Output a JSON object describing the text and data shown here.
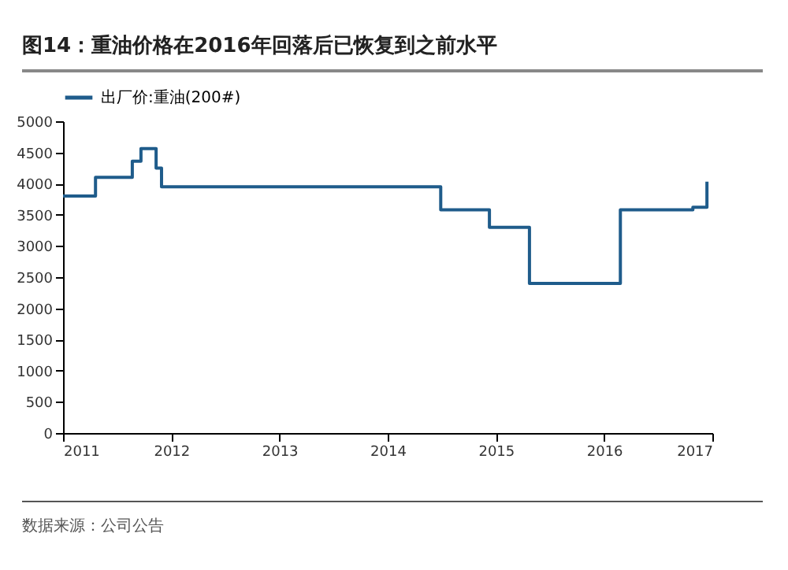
{
  "chart_data": {
    "type": "step",
    "title": "图14：重油价格在2016年回落后已恢复到之前水平",
    "x": [
      2011.0,
      2011.3,
      2011.64,
      2011.72,
      2011.86,
      2011.91,
      2014.49,
      2014.94,
      2015.31,
      2016.15,
      2016.82,
      2016.95
    ],
    "series": [
      {
        "name": "出厂价:重油(200#)",
        "color": "#1f5c8b",
        "values": [
          3800,
          4100,
          4360,
          4560,
          4250,
          3950,
          3580,
          3300,
          2400,
          3580,
          3620,
          4030
        ]
      }
    ],
    "xlim": [
      2011,
      2017
    ],
    "xticks": [
      2011,
      2012,
      2013,
      2014,
      2015,
      2016,
      2017
    ],
    "ylim": [
      0,
      5000
    ],
    "yticks": [
      0,
      500,
      1000,
      1500,
      2000,
      2500,
      3000,
      3500,
      4000,
      4500,
      5000
    ],
    "legend": "top",
    "grid": false,
    "annotations": [
      "数据来源：公司公告"
    ]
  }
}
